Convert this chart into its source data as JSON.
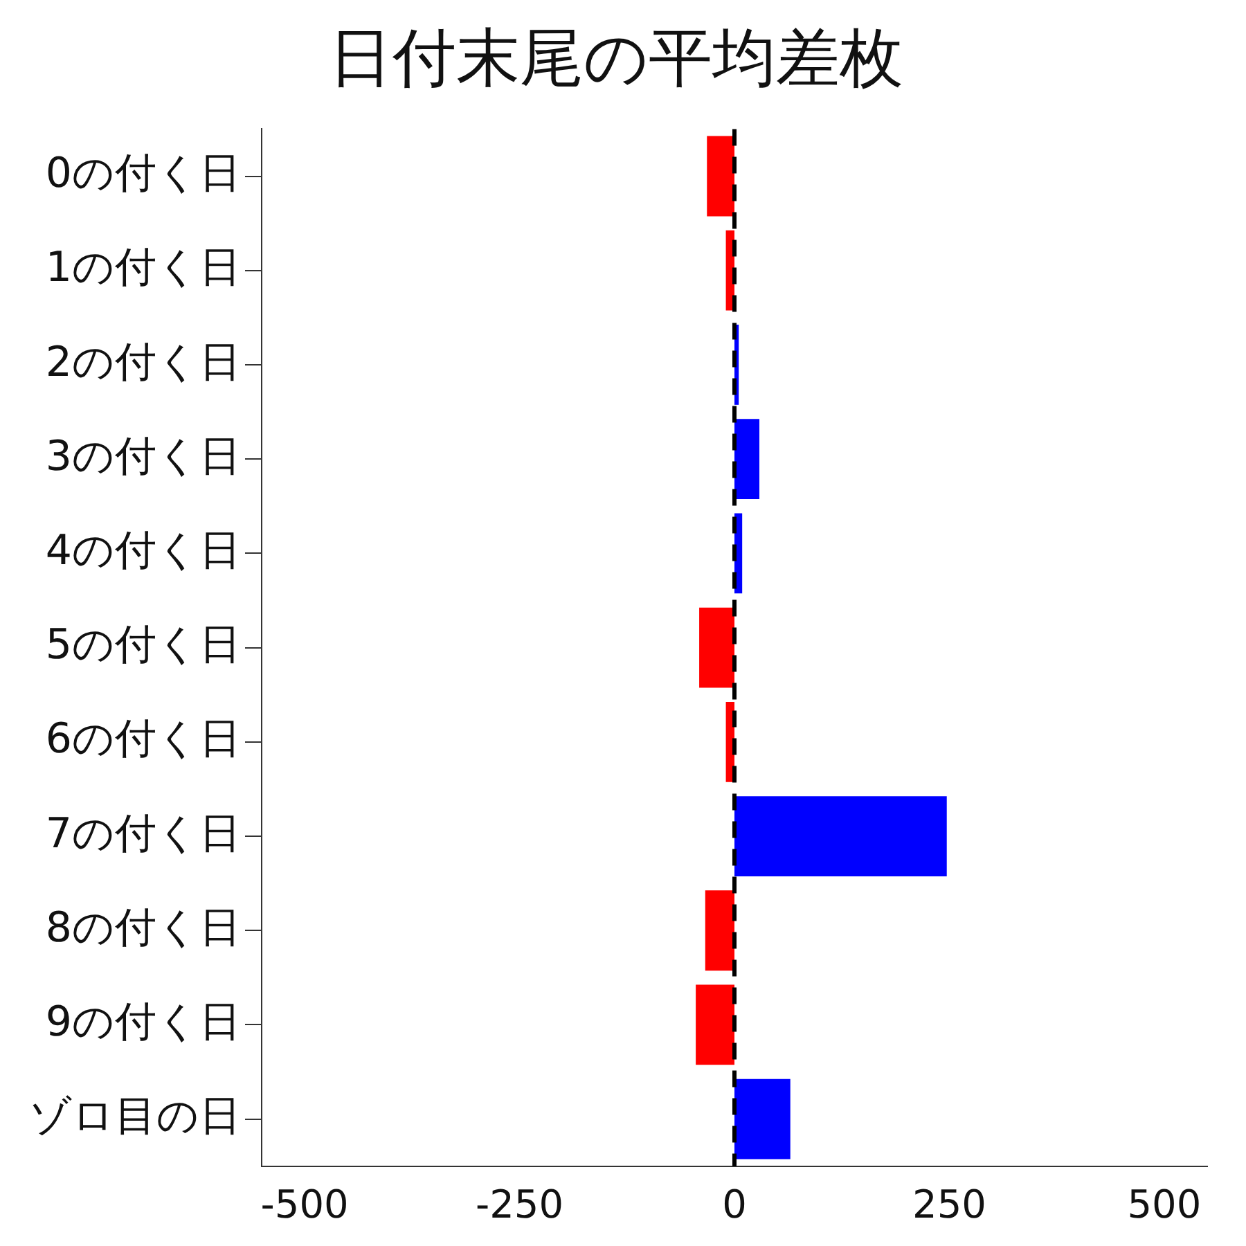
{
  "chart_data": {
    "type": "bar",
    "orientation": "horizontal",
    "title": "日付末尾の平均差枚",
    "categories": [
      "0の付く日",
      "1の付く日",
      "2の付く日",
      "3の付く日",
      "4の付く日",
      "5の付く日",
      "6の付く日",
      "7の付く日",
      "8の付く日",
      "9の付く日",
      "ゾロ目の日"
    ],
    "values": [
      -32,
      -10,
      5,
      29,
      9,
      -41,
      -10,
      247,
      -34,
      -45,
      65
    ],
    "colors": [
      "#ff0000",
      "#ff0000",
      "#0000ff",
      "#0000ff",
      "#0000ff",
      "#ff0000",
      "#ff0000",
      "#0000ff",
      "#ff0000",
      "#ff0000",
      "#0000ff"
    ],
    "xlim": [
      -550,
      550
    ],
    "xticks": [
      -500,
      -250,
      0,
      250,
      500
    ],
    "ref_lines": [
      {
        "axis": "x",
        "value": 0,
        "color": "#000000",
        "line_style": "dashed"
      }
    ],
    "grid": false,
    "legend": false
  }
}
